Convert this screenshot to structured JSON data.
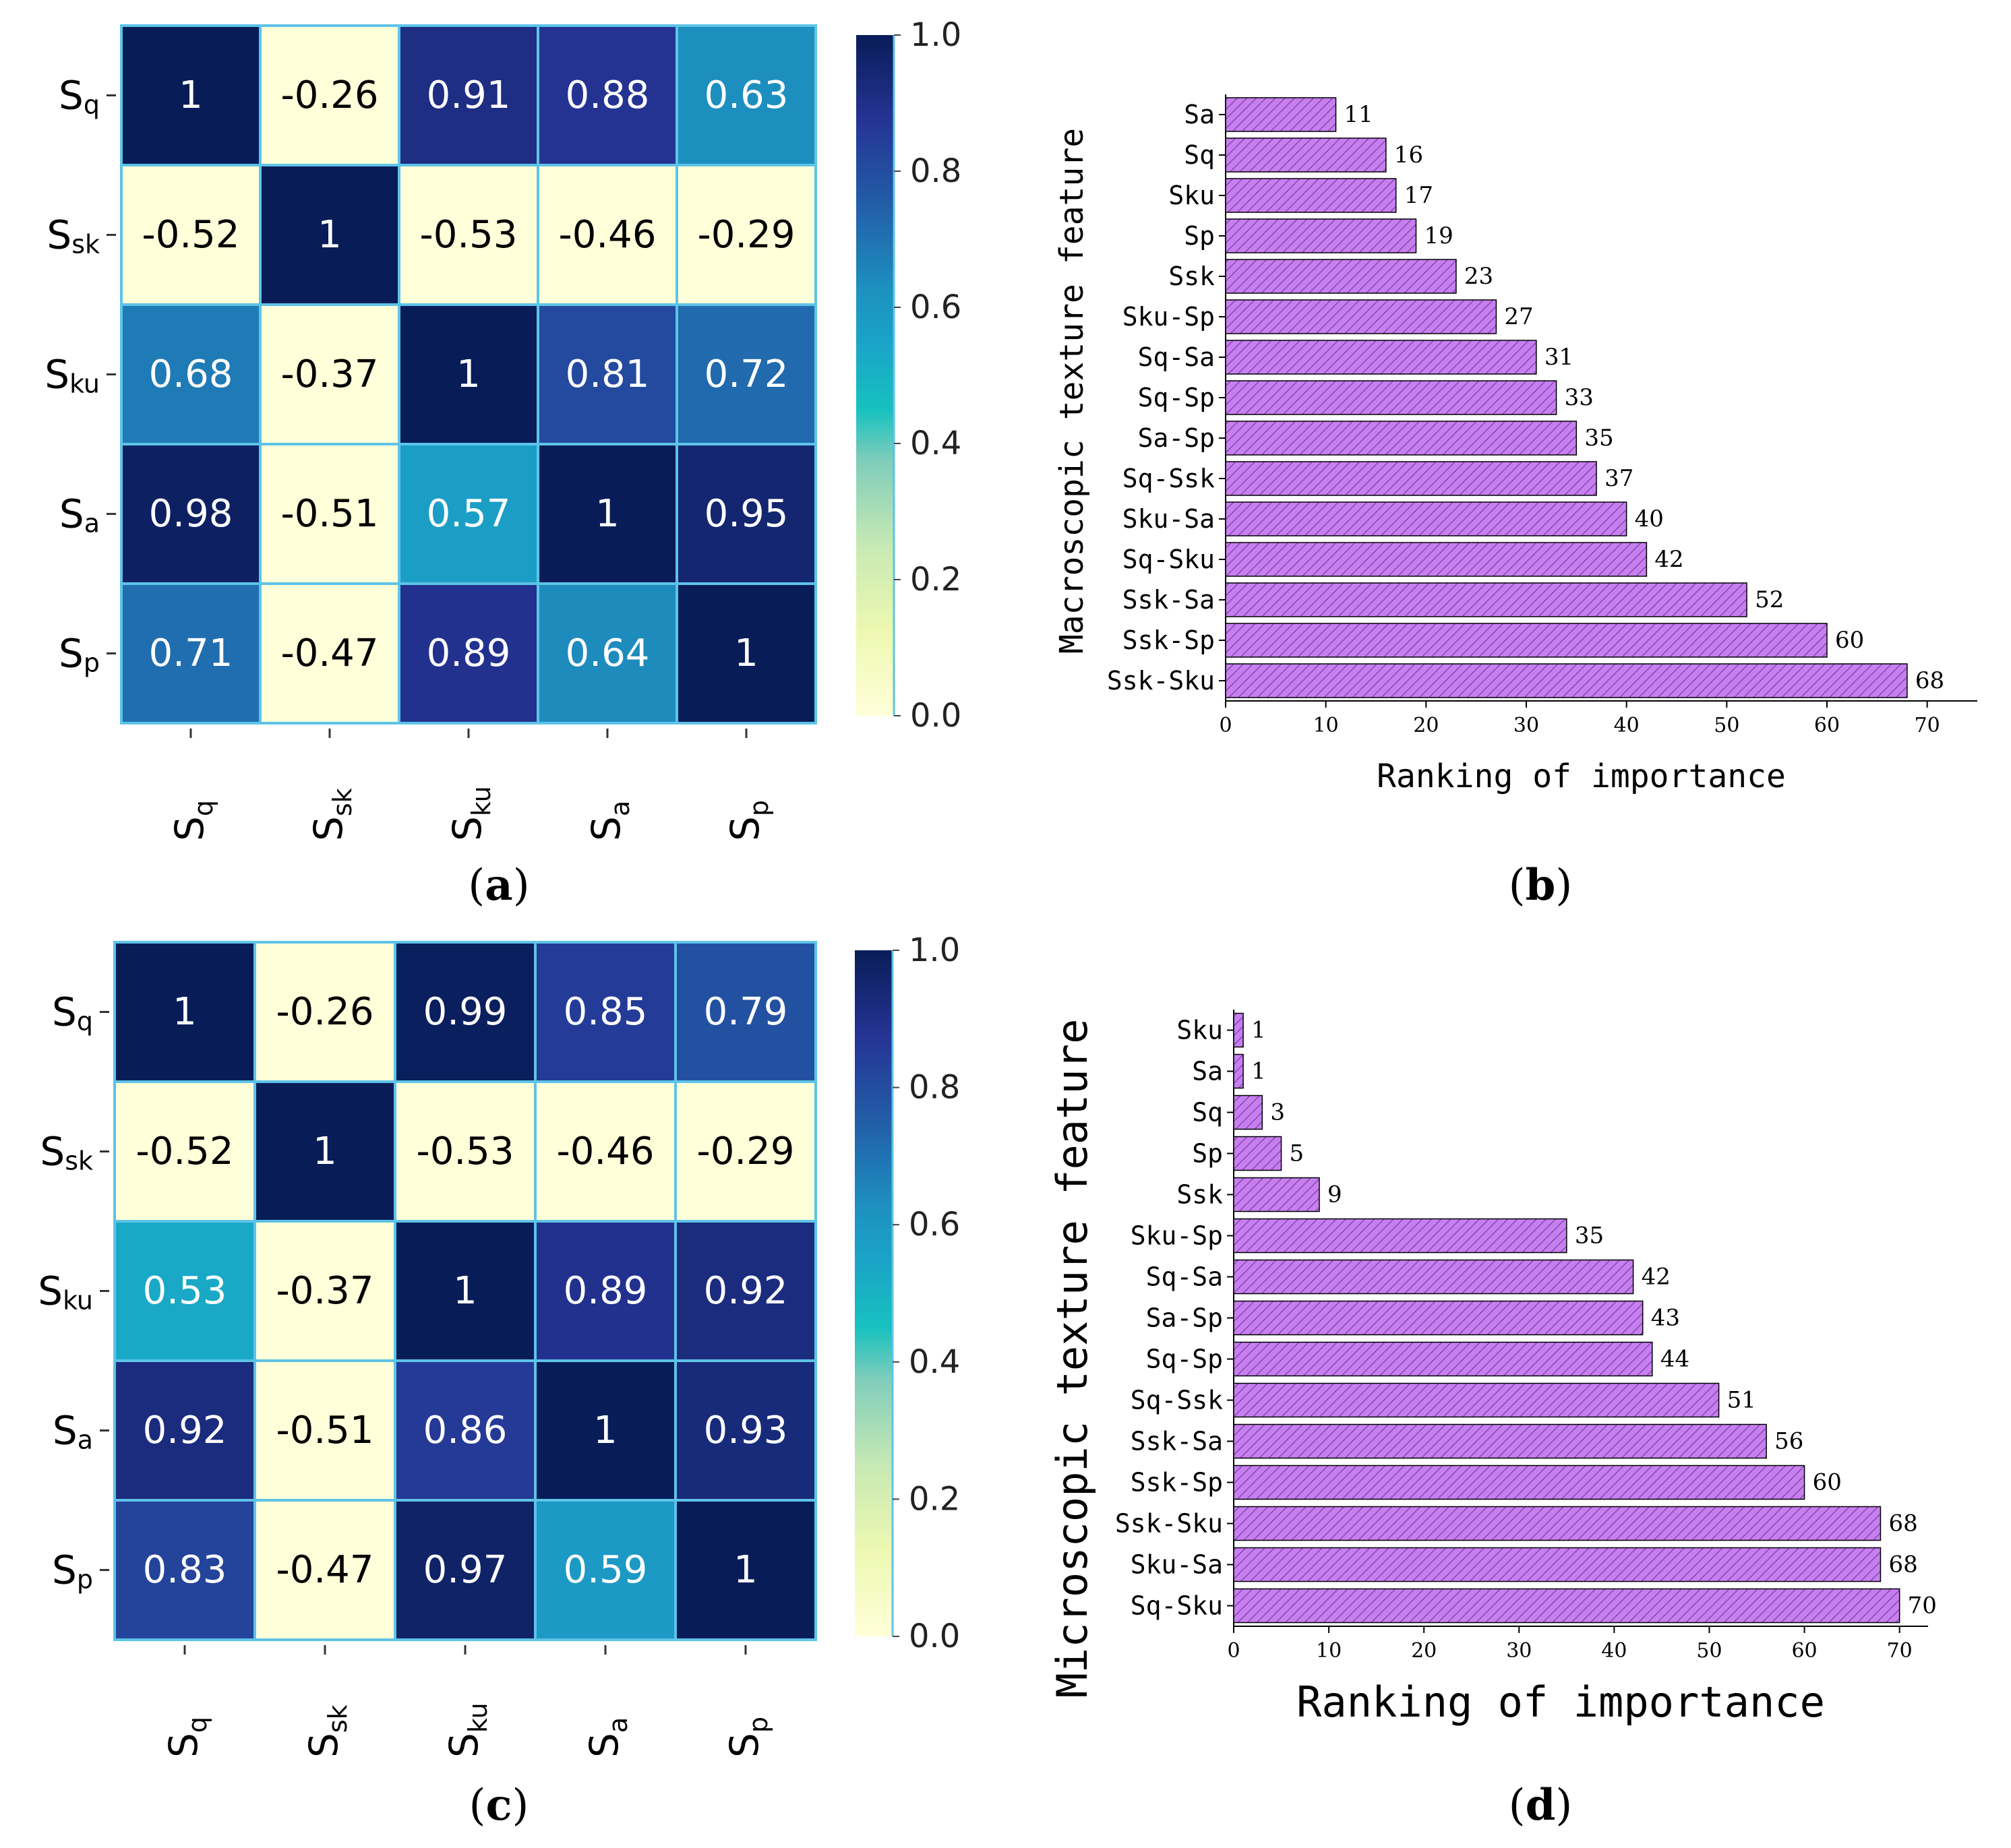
{
  "chart_data": [
    {
      "id": "a",
      "type": "heatmap",
      "panel_label": "a",
      "row_labels": [
        {
          "base": "S",
          "sub": "q"
        },
        {
          "base": "S",
          "sub": "sk"
        },
        {
          "base": "S",
          "sub": "ku"
        },
        {
          "base": "S",
          "sub": "a"
        },
        {
          "base": "S",
          "sub": "p"
        }
      ],
      "col_labels": [
        {
          "base": "S",
          "sub": "q"
        },
        {
          "base": "S",
          "sub": "sk"
        },
        {
          "base": "S",
          "sub": "ku"
        },
        {
          "base": "S",
          "sub": "a"
        },
        {
          "base": "S",
          "sub": "p"
        }
      ],
      "values": [
        [
          1,
          -0.26,
          0.91,
          0.88,
          0.63
        ],
        [
          -0.52,
          1,
          -0.53,
          -0.46,
          -0.29
        ],
        [
          0.68,
          -0.37,
          1,
          0.81,
          0.72
        ],
        [
          0.98,
          -0.51,
          0.57,
          1,
          0.95
        ],
        [
          0.71,
          -0.47,
          0.89,
          0.64,
          1
        ]
      ],
      "colorbar": {
        "min": 0.0,
        "max": 1.0,
        "ticks": [
          "1.0",
          "0.8",
          "0.6",
          "0.4",
          "0.2",
          "0.0"
        ],
        "colormap": "YlGnBu"
      }
    },
    {
      "id": "b",
      "type": "bar",
      "orientation": "horizontal",
      "panel_label": "b",
      "categories": [
        "Sa",
        "Sq",
        "Sku",
        "Sp",
        "Ssk",
        "Sku-Sp",
        "Sq-Sa",
        "Sq-Sp",
        "Sa-Sp",
        "Sq-Ssk",
        "Sku-Sa",
        "Sq-Sku",
        "Ssk-Sa",
        "Ssk-Sp",
        "Ssk-Sku"
      ],
      "values": [
        11,
        16,
        17,
        19,
        23,
        27,
        31,
        33,
        35,
        37,
        40,
        42,
        52,
        60,
        68
      ],
      "value_labels": [
        "11",
        "16",
        "17",
        "19",
        "23",
        "27",
        "31",
        "33",
        "35",
        "37",
        "40",
        "42",
        "52",
        "60",
        "68"
      ],
      "xlabel": "Ranking of importance",
      "ylabel": "Macroscopic texture feature",
      "xlim": [
        0,
        75
      ],
      "xticks": [
        "0",
        "10",
        "20",
        "30",
        "40",
        "50",
        "60",
        "70"
      ],
      "bar_color": "#c77ff0"
    },
    {
      "id": "c",
      "type": "heatmap",
      "panel_label": "c",
      "row_labels": [
        {
          "base": "S",
          "sub": "q"
        },
        {
          "base": "S",
          "sub": "sk"
        },
        {
          "base": "S",
          "sub": "ku"
        },
        {
          "base": "S",
          "sub": "a"
        },
        {
          "base": "S",
          "sub": "p"
        }
      ],
      "col_labels": [
        {
          "base": "S",
          "sub": "q"
        },
        {
          "base": "S",
          "sub": "sk"
        },
        {
          "base": "S",
          "sub": "ku"
        },
        {
          "base": "S",
          "sub": "a"
        },
        {
          "base": "S",
          "sub": "p"
        }
      ],
      "values": [
        [
          1,
          -0.26,
          0.99,
          0.85,
          0.79
        ],
        [
          -0.52,
          1,
          -0.53,
          -0.46,
          -0.29
        ],
        [
          0.53,
          -0.37,
          1,
          0.89,
          0.92
        ],
        [
          0.92,
          -0.51,
          0.86,
          1,
          0.93
        ],
        [
          0.83,
          -0.47,
          0.97,
          0.59,
          1
        ]
      ],
      "colorbar": {
        "min": 0.0,
        "max": 1.0,
        "ticks": [
          "1.0",
          "0.8",
          "0.6",
          "0.4",
          "0.2",
          "0.0"
        ],
        "colormap": "YlGnBu"
      }
    },
    {
      "id": "d",
      "type": "bar",
      "orientation": "horizontal",
      "panel_label": "d",
      "categories": [
        "Sku",
        "Sa",
        "Sq",
        "Sp",
        "Ssk",
        "Sku-Sp",
        "Sq-Sa",
        "Sa-Sp",
        "Sq-Sp",
        "Sq-Ssk",
        "Ssk-Sa",
        "Ssk-Sp",
        "Ssk-Sku",
        "Sku-Sa",
        "Sq-Sku"
      ],
      "values": [
        1,
        1,
        3,
        5,
        9,
        35,
        42,
        43,
        44,
        51,
        56,
        60,
        68,
        68,
        70
      ],
      "value_labels": [
        "1",
        "1",
        "3",
        "5",
        "9",
        "35",
        "42",
        "43",
        "44",
        "51",
        "56",
        "60",
        "68",
        "68",
        "70"
      ],
      "xlabel": "Ranking of importance",
      "ylabel": "Microscopic texture feature",
      "xlim": [
        0,
        73
      ],
      "xticks": [
        "0",
        "10",
        "20",
        "30",
        "40",
        "50",
        "60",
        "70"
      ],
      "bar_color": "#c77ff0"
    }
  ]
}
